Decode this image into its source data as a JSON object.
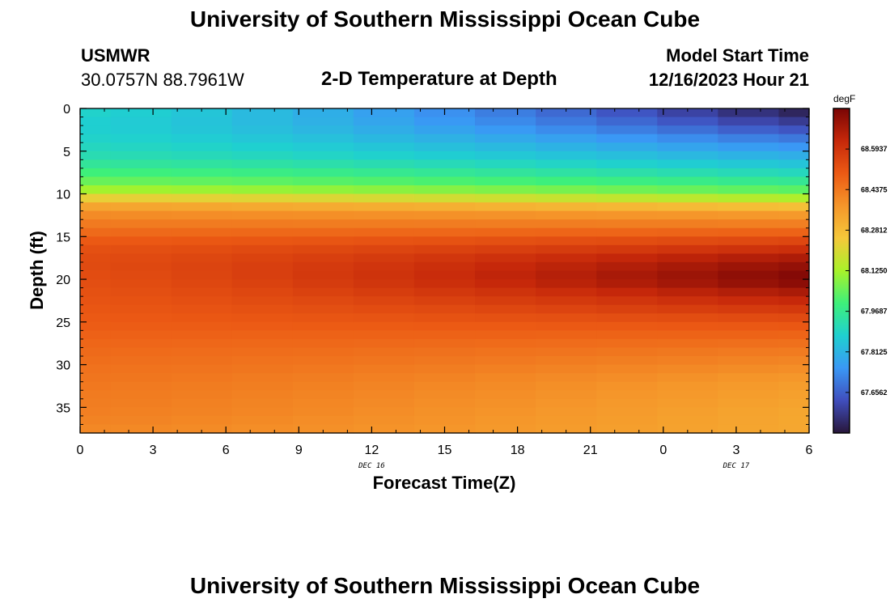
{
  "page": {
    "title": "University of Southern Mississippi Ocean Cube",
    "title_repeat": "University of Southern Mississippi Ocean Cube",
    "station": "USMWR",
    "coords": "30.0757N  88.7961W",
    "subtitle": "2-D Temperature at Depth",
    "model_start_label": "Model Start Time",
    "model_start_value": "12/16/2023 Hour 21"
  },
  "chart_data": {
    "type": "heatmap",
    "title": "2-D Temperature at Depth",
    "xlabel": "Forecast Time(Z)",
    "ylabel": "Depth (ft)",
    "x_ticks": [
      "0",
      "3",
      "6",
      "9",
      "12",
      "15",
      "18",
      "21",
      "0",
      "3",
      "6"
    ],
    "x_hours": [
      0,
      3,
      6,
      9,
      12,
      15,
      18,
      21,
      24,
      27,
      30
    ],
    "date_labels": [
      {
        "text": "DEC 16",
        "hour": 12
      },
      {
        "text": "DEC 17",
        "hour": 27
      }
    ],
    "y_ticks": [
      0,
      5,
      10,
      15,
      20,
      25,
      30,
      35
    ],
    "xlim": [
      0,
      30
    ],
    "ylim": [
      0,
      38
    ],
    "colorbar": {
      "unit": "degF",
      "ticks": [
        "68.5937",
        "68.4375",
        "68.2812",
        "68.1250",
        "67.9687",
        "67.8125",
        "67.6562"
      ],
      "tick_values": [
        68.5937,
        68.4375,
        68.2812,
        68.125,
        67.9687,
        67.8125,
        67.6562
      ],
      "min": 67.5,
      "max": 68.75,
      "colors": [
        "#28163a",
        "#404ebd",
        "#3a98f5",
        "#1fd0d0",
        "#3ef07a",
        "#a8f22a",
        "#f5c83a",
        "#f5962a",
        "#ec5a14",
        "#c6280a",
        "#7a0505"
      ]
    },
    "columns_hours": [
      0,
      1.25,
      3.75,
      6.25,
      8.75,
      11.25,
      13.75,
      16.25,
      18.75,
      21.25,
      23.75,
      26.25,
      28.75,
      30
    ],
    "depth_profile": {
      "depths": [
        0,
        2,
        4,
        6,
        7,
        8,
        9,
        10,
        11,
        12,
        14,
        16,
        18,
        20,
        22,
        25,
        28,
        32,
        36,
        38
      ],
      "start": [
        67.89,
        67.87,
        67.89,
        67.93,
        67.98,
        68.02,
        68.08,
        68.16,
        68.3,
        68.38,
        68.45,
        68.52,
        68.54,
        68.53,
        68.52,
        68.5,
        68.47,
        68.44,
        68.42,
        68.4
      ],
      "end": [
        67.5,
        67.6,
        67.72,
        67.82,
        67.87,
        67.93,
        67.99,
        68.07,
        68.2,
        68.34,
        68.45,
        68.58,
        68.7,
        68.75,
        68.65,
        68.52,
        68.44,
        68.36,
        68.33,
        68.33
      ]
    }
  }
}
